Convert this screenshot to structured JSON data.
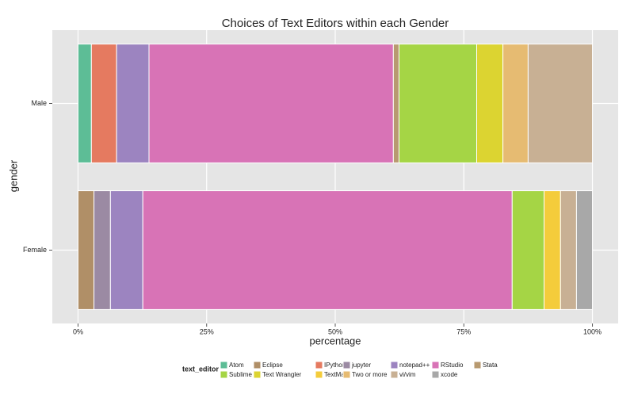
{
  "chart_data": {
    "type": "bar",
    "orientation": "horizontal",
    "stacked": true,
    "title": "Choices of Text Editors within each Gender",
    "x_label": "percentage",
    "y_label": "gender",
    "categories": [
      "Male",
      "Female"
    ],
    "xlim": [
      -5,
      105
    ],
    "xticks": [
      {
        "value": 0,
        "label": "0%"
      },
      {
        "value": 25,
        "label": "25%"
      },
      {
        "value": 50,
        "label": "50%"
      },
      {
        "value": 75,
        "label": "75%"
      },
      {
        "value": 100,
        "label": "100%"
      }
    ],
    "grid": true,
    "legend_title": "text_editor",
    "legend_position": "bottom",
    "series": [
      {
        "name": "Atom",
        "color": "#5dbd96",
        "values": [
          2.6,
          null
        ]
      },
      {
        "name": "Eclipse",
        "color": "#b08f67",
        "values": [
          null,
          3.1
        ]
      },
      {
        "name": "IPython",
        "color": "#e57a60",
        "values": [
          4.9,
          null
        ]
      },
      {
        "name": "jupyter",
        "color": "#9b8aa3",
        "values": [
          null,
          3.2
        ]
      },
      {
        "name": "notepad++",
        "color": "#9c84c0",
        "values": [
          6.3,
          6.3
        ]
      },
      {
        "name": "RStudio",
        "color": "#d873b6",
        "values": [
          47.5,
          71.8
        ]
      },
      {
        "name": "Stata",
        "color": "#b89a70",
        "values": [
          1.1,
          null
        ]
      },
      {
        "name": "Sublime",
        "color": "#a5d545",
        "values": [
          15.1,
          6.2
        ]
      },
      {
        "name": "Text Wrangler",
        "color": "#dcd431",
        "values": [
          5.1,
          null
        ]
      },
      {
        "name": "TextMate",
        "color": "#f4cc3b",
        "values": [
          null,
          3.2
        ]
      },
      {
        "name": "Two or more",
        "color": "#e6bb72",
        "values": [
          4.9,
          null
        ]
      },
      {
        "name": "vi/vim",
        "color": "#c8b094",
        "values": [
          12.5,
          3.1
        ]
      },
      {
        "name": "xcode",
        "color": "#a8a8a8",
        "values": [
          null,
          3.1
        ]
      }
    ]
  }
}
